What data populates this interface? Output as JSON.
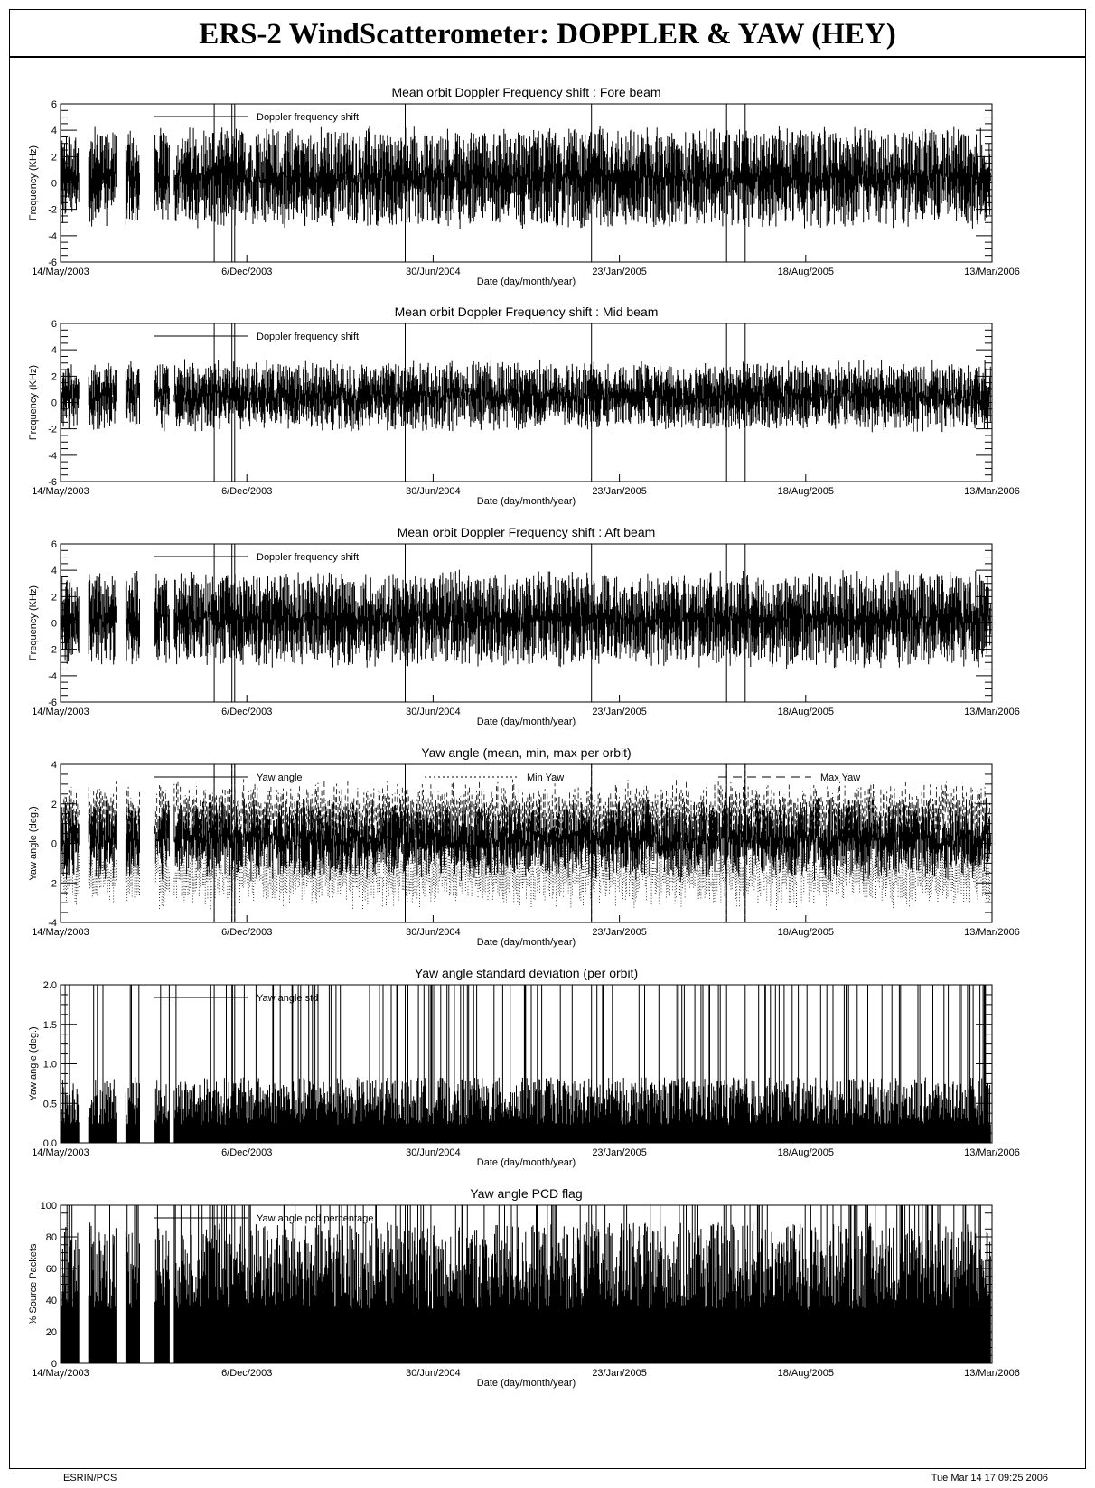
{
  "header": {
    "title": "ERS-2 WindScatterometer: DOPPLER & YAW (HEY)"
  },
  "footer": {
    "left": "ESRIN/PCS",
    "right": "Tue Mar 14 17:09:25 2006"
  },
  "chart_data": [
    {
      "type": "line",
      "title": "Mean orbit Doppler Frequency shift : Fore beam",
      "xlabel": "Date (day/month/year)",
      "ylabel": "Frequency (KHz)",
      "xticklabels": [
        "14/May/2003",
        "6/Dec/2003",
        "30/Jun/2004",
        "23/Jan/2005",
        "18/Aug/2005",
        "13/Mar/2006"
      ],
      "ylim": [
        -6,
        6
      ],
      "yticks": [
        -6,
        -4,
        -2,
        0,
        2,
        4,
        6
      ],
      "series": [
        {
          "name": "Doppler frequency shift",
          "style": "solid",
          "mean": 0.4,
          "amplitude": 3.6
        }
      ]
    },
    {
      "type": "line",
      "title": "Mean orbit Doppler Frequency shift : Mid  beam",
      "xlabel": "Date (day/month/year)",
      "ylabel": "Frequency (KHz)",
      "xticklabels": [
        "14/May/2003",
        "6/Dec/2003",
        "30/Jun/2004",
        "23/Jan/2005",
        "18/Aug/2005",
        "13/Mar/2006"
      ],
      "ylim": [
        -6,
        6
      ],
      "yticks": [
        -6,
        -4,
        -2,
        0,
        2,
        4,
        6
      ],
      "series": [
        {
          "name": "Doppler frequency shift",
          "style": "solid",
          "mean": 0.5,
          "amplitude": 2.4
        }
      ]
    },
    {
      "type": "line",
      "title": "Mean orbit Doppler Frequency shift : Aft beam",
      "xlabel": "Date (day/month/year)",
      "ylabel": "Frequency (KHz)",
      "xticklabels": [
        "14/May/2003",
        "6/Dec/2003",
        "30/Jun/2004",
        "23/Jan/2005",
        "18/Aug/2005",
        "13/Mar/2006"
      ],
      "ylim": [
        -6,
        6
      ],
      "yticks": [
        -6,
        -4,
        -2,
        0,
        2,
        4,
        6
      ],
      "series": [
        {
          "name": "Doppler frequency shift",
          "style": "solid",
          "mean": 0.3,
          "amplitude": 3.4
        }
      ]
    },
    {
      "type": "line",
      "title": "Yaw angle (mean, min, max per orbit)",
      "xlabel": "Date (day/month/year)",
      "ylabel": "Yaw angle (deg.)",
      "xticklabels": [
        "14/May/2003",
        "6/Dec/2003",
        "30/Jun/2004",
        "23/Jan/2005",
        "18/Aug/2005",
        "13/Mar/2006"
      ],
      "ylim": [
        -4,
        4
      ],
      "yticks": [
        -4,
        -2,
        0,
        2,
        4
      ],
      "series": [
        {
          "name": "Yaw angle",
          "style": "solid",
          "mean": 0.2,
          "amplitude": 1.8
        },
        {
          "name": "Min Yaw",
          "style": "dotted",
          "mean": -1.6,
          "amplitude": 1.4
        },
        {
          "name": "Max Yaw",
          "style": "dashed",
          "mean": 1.6,
          "amplitude": 1.4
        }
      ]
    },
    {
      "type": "line",
      "title": "Yaw angle standard deviation (per orbit)",
      "xlabel": "Date (day/month/year)",
      "ylabel": "Yaw angle (deg.)",
      "xticklabels": [
        "14/May/2003",
        "6/Dec/2003",
        "30/Jun/2004",
        "23/Jan/2005",
        "18/Aug/2005",
        "13/Mar/2006"
      ],
      "ylim": [
        0.0,
        2.0
      ],
      "yticks": [
        0.0,
        0.5,
        1.0,
        1.5,
        2.0
      ],
      "yticklabels": [
        "0.0",
        "0.5",
        "1.0",
        "1.5",
        "2.0"
      ],
      "series": [
        {
          "name": "Yaw angle std",
          "style": "solid",
          "mean": 0.35,
          "amplitude": 0.6
        }
      ]
    },
    {
      "type": "line",
      "title": "Yaw angle PCD flag",
      "xlabel": "Date (day/month/year)",
      "ylabel": "% Source Packets",
      "xticklabels": [
        "14/May/2003",
        "6/Dec/2003",
        "30/Jun/2004",
        "23/Jan/2005",
        "18/Aug/2005",
        "13/Mar/2006"
      ],
      "ylim": [
        0,
        100
      ],
      "yticks": [
        0,
        20,
        40,
        60,
        80,
        100
      ],
      "series": [
        {
          "name": "Yaw angle pcd percentage",
          "style": "solid",
          "mean": 45,
          "amplitude": 55
        }
      ]
    }
  ]
}
